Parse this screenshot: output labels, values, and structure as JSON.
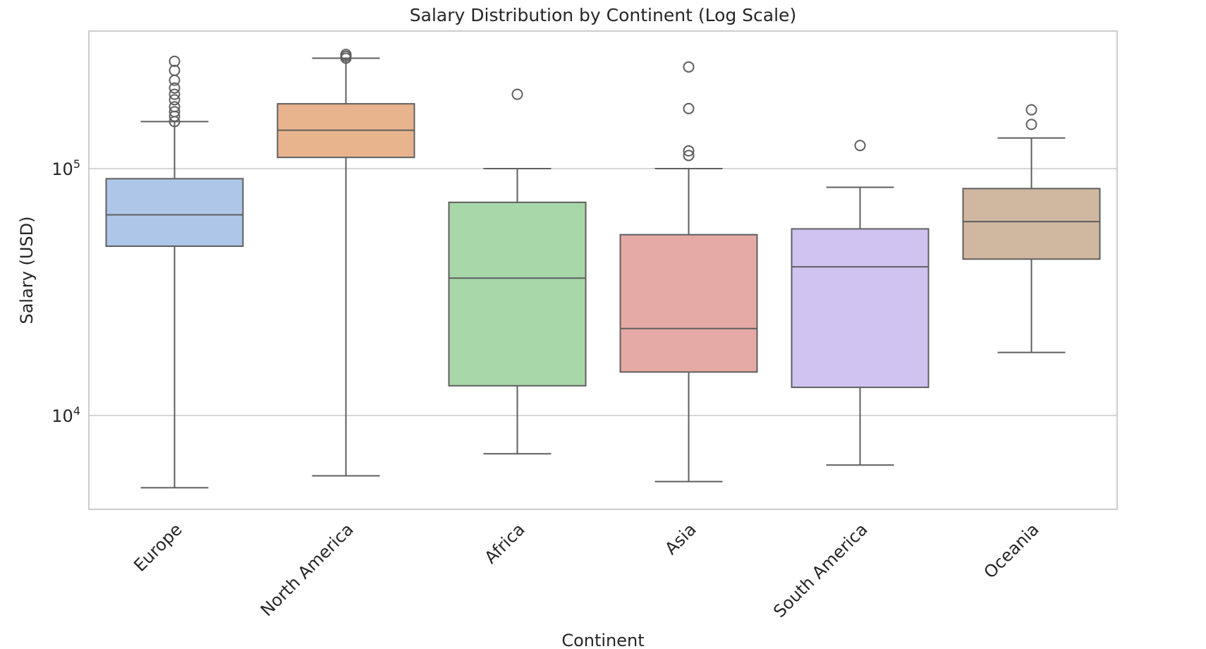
{
  "chart_data": {
    "type": "box",
    "title": "Salary Distribution by Continent (Log Scale)",
    "xlabel": "Continent",
    "ylabel": "Salary (USD)",
    "yscale": "log",
    "ylim": [
      4500,
      300000
    ],
    "yticks": [
      {
        "value": 10000,
        "base": "10",
        "exp": "4"
      },
      {
        "value": 100000,
        "base": "10",
        "exp": "5"
      }
    ],
    "grid": "horizontal",
    "categories": [
      "Europe",
      "North America",
      "Africa",
      "Asia",
      "South America",
      "Oceania"
    ],
    "boxes": [
      {
        "category": "Europe",
        "color": "#aec7e8",
        "whisker_low": 5100,
        "q1": 48500,
        "median": 65000,
        "q3": 91000,
        "whisker_high": 155000,
        "outliers": [
          155000,
          163000,
          170000,
          178000,
          190000,
          200000,
          212000,
          228000,
          250000,
          272000
        ]
      },
      {
        "category": "North America",
        "color": "#e8b48e",
        "whisker_low": 5700,
        "q1": 111000,
        "median": 143000,
        "q3": 183000,
        "whisker_high": 280000,
        "outliers": [
          280000,
          285000,
          290000
        ]
      },
      {
        "category": "Africa",
        "color": "#a8d8aa",
        "whisker_low": 7000,
        "q1": 13200,
        "median": 36000,
        "q3": 73000,
        "whisker_high": 100000,
        "outliers": [
          200000
        ]
      },
      {
        "category": "Asia",
        "color": "#e5a9a6",
        "whisker_low": 5400,
        "q1": 15000,
        "median": 22500,
        "q3": 54000,
        "whisker_high": 100000,
        "outliers": [
          113000,
          118000,
          175000,
          258000
        ]
      },
      {
        "category": "South America",
        "color": "#d0c3f1",
        "whisker_low": 6300,
        "q1": 13000,
        "median": 40000,
        "q3": 57000,
        "whisker_high": 84000,
        "outliers": [
          124000
        ]
      },
      {
        "category": "Oceania",
        "color": "#d0b8a0",
        "whisker_low": 18000,
        "q1": 43000,
        "median": 61000,
        "q3": 83000,
        "whisker_high": 133000,
        "outliers": [
          151000,
          173000
        ]
      }
    ]
  }
}
